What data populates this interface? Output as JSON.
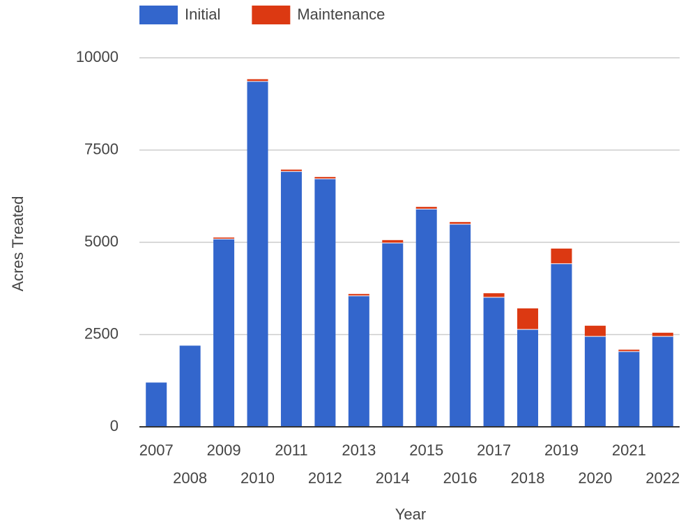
{
  "chart_data": {
    "type": "stacked_bar",
    "x_label": "Year",
    "y_label": "Acres Treated",
    "categories": [
      "2007",
      "2008",
      "2009",
      "2010",
      "2011",
      "2012",
      "2013",
      "2014",
      "2015",
      "2016",
      "2017",
      "2018",
      "2019",
      "2020",
      "2021",
      "2022"
    ],
    "series": [
      {
        "name": "Initial",
        "color": "#3366cc",
        "values": [
          1200,
          2200,
          5090,
          9360,
          6920,
          6720,
          3550,
          4980,
          5900,
          5490,
          3510,
          2640,
          4420,
          2450,
          2040,
          2450
        ]
      },
      {
        "name": "Maintenance",
        "color": "#dc3912",
        "values": [
          0,
          0,
          40,
          60,
          50,
          50,
          50,
          80,
          60,
          60,
          110,
          570,
          410,
          290,
          50,
          100
        ]
      }
    ],
    "ylim": [
      0,
      10000
    ],
    "yticks": [
      0,
      2500,
      5000,
      7500,
      10000
    ],
    "grid": true,
    "legend": "top"
  }
}
